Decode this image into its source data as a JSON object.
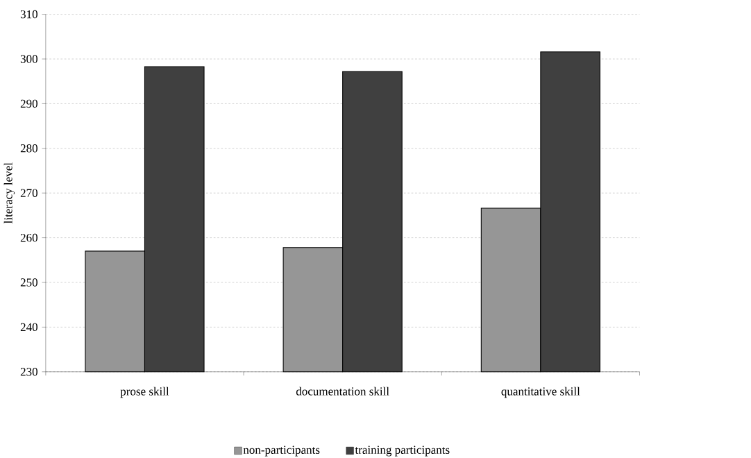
{
  "chart_data": {
    "type": "bar",
    "ylabel": "literacy level",
    "categories": [
      "prose skill",
      "documentation skill",
      "quantitative skill"
    ],
    "series": [
      {
        "name": "non-participants",
        "color": "#969696",
        "values": [
          257,
          257.8,
          266.6
        ]
      },
      {
        "name": "training participants",
        "color": "#404040",
        "values": [
          298.3,
          297.2,
          301.6
        ]
      }
    ],
    "ylim": [
      230,
      310
    ],
    "yticks": [
      230,
      240,
      250,
      260,
      270,
      280,
      290,
      300,
      310
    ],
    "grid": "y",
    "legend": "bottom"
  }
}
